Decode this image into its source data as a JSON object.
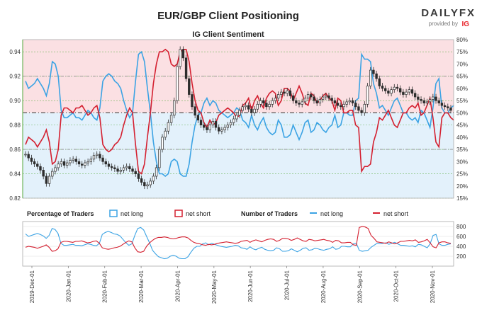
{
  "header": {
    "title": "EUR/GBP Client Positioning",
    "brand_main": "DAILYFX",
    "brand_sub": "provided by",
    "brand_ig": "IG"
  },
  "colors": {
    "long": "#3ba3e4",
    "short": "#d42030",
    "long_bg": "#e3f1fb",
    "short_bg": "#fbe0e3",
    "candle": "#2d2d2d",
    "grid_green": "#6fb55a",
    "grid_gray": "#8c8c8c"
  },
  "chart_data": [
    {
      "type": "candlestick+line",
      "title": "IG Client Sentiment",
      "y_left": {
        "ticks": [
          "0.82",
          "0.84",
          "0.86",
          "0.88",
          "0.90",
          "0.92",
          "0.94"
        ],
        "ylim": [
          0.82,
          0.95
        ]
      },
      "y_right": {
        "ticks": [
          "15%",
          "20%",
          "25%",
          "30%",
          "35%",
          "40%",
          "45%",
          "50%",
          "55%",
          "60%",
          "65%",
          "70%",
          "75%",
          "80%"
        ],
        "ylim": [
          15,
          80
        ]
      },
      "price_close": [
        0.856,
        0.853,
        0.85,
        0.848,
        0.846,
        0.843,
        0.838,
        0.832,
        0.838,
        0.842,
        0.845,
        0.848,
        0.85,
        0.847,
        0.849,
        0.851,
        0.852,
        0.85,
        0.848,
        0.847,
        0.849,
        0.85,
        0.852,
        0.855,
        0.856,
        0.853,
        0.85,
        0.848,
        0.846,
        0.845,
        0.844,
        0.842,
        0.843,
        0.845,
        0.846,
        0.844,
        0.842,
        0.84,
        0.836,
        0.833,
        0.83,
        0.831,
        0.834,
        0.838,
        0.845,
        0.86,
        0.87,
        0.875,
        0.882,
        0.888,
        0.9,
        0.928,
        0.942,
        0.935,
        0.918,
        0.905,
        0.895,
        0.888,
        0.884,
        0.88,
        0.878,
        0.876,
        0.88,
        0.883,
        0.878,
        0.875,
        0.876,
        0.878,
        0.88,
        0.882,
        0.885,
        0.888,
        0.892,
        0.895,
        0.896,
        0.893,
        0.89,
        0.893,
        0.897,
        0.9,
        0.898,
        0.895,
        0.897,
        0.9,
        0.902,
        0.905,
        0.907,
        0.906,
        0.908,
        0.904,
        0.9,
        0.898,
        0.897,
        0.899,
        0.902,
        0.905,
        0.903,
        0.9,
        0.898,
        0.901,
        0.903,
        0.904,
        0.902,
        0.9,
        0.898,
        0.896,
        0.895,
        0.897,
        0.899,
        0.9,
        0.898,
        0.895,
        0.892,
        0.89,
        0.897,
        0.912,
        0.925,
        0.922,
        0.918,
        0.912,
        0.91,
        0.908,
        0.906,
        0.909,
        0.911,
        0.91,
        0.907,
        0.905,
        0.907,
        0.909,
        0.906,
        0.903,
        0.901,
        0.9,
        0.898,
        0.899,
        0.901,
        0.903,
        0.9,
        0.898,
        0.896,
        0.895,
        0.894,
        0.892
      ],
      "pct_net_long": [
        63,
        60,
        61,
        62,
        64,
        62,
        60,
        57,
        62,
        71,
        70,
        65,
        51,
        48,
        48,
        49,
        50,
        48,
        48,
        47,
        49,
        51,
        50,
        48,
        47,
        52,
        63,
        65,
        66,
        65,
        63,
        62,
        60,
        55,
        51,
        48,
        50,
        63,
        74,
        75,
        71,
        60,
        50,
        38,
        30,
        25,
        25,
        24,
        25,
        30,
        31,
        30,
        25,
        24,
        24,
        29,
        38,
        45,
        49,
        50,
        54,
        56,
        53,
        55,
        54,
        51,
        50,
        49,
        48,
        49,
        50,
        52,
        51,
        47,
        46,
        44,
        49,
        45,
        43,
        46,
        48,
        44,
        42,
        41,
        42,
        47,
        45,
        40,
        40,
        41,
        45,
        42,
        39,
        42,
        46,
        47,
        42,
        43,
        46,
        45,
        43,
        42,
        44,
        45,
        49,
        44,
        45,
        50,
        50,
        49,
        49,
        55,
        56,
        74,
        72,
        72,
        71,
        62,
        58,
        52,
        53,
        51,
        49,
        52,
        55,
        56,
        53,
        50,
        50,
        48,
        47,
        48,
        46,
        51,
        50,
        47,
        44,
        52,
        62,
        64,
        52,
        50,
        50,
        52,
        53
      ],
      "pct_net_short": [
        37,
        40,
        39,
        38,
        36,
        38,
        40,
        43,
        38,
        29,
        30,
        35,
        49,
        52,
        52,
        51,
        50,
        52,
        52,
        53,
        51,
        49,
        50,
        52,
        53,
        48,
        37,
        35,
        34,
        35,
        37,
        38,
        40,
        45,
        49,
        52,
        50,
        37,
        26,
        25,
        29,
        40,
        50,
        62,
        70,
        75,
        75,
        76,
        75,
        70,
        69,
        70,
        75,
        76,
        76,
        71,
        62,
        55,
        51,
        50,
        46,
        44,
        47,
        45,
        46,
        49,
        50,
        51,
        52,
        51,
        50,
        48,
        49,
        53,
        54,
        56,
        51,
        55,
        57,
        54,
        52,
        56,
        58,
        59,
        58,
        53,
        55,
        60,
        60,
        59,
        55,
        58,
        61,
        58,
        54,
        53,
        58,
        57,
        54,
        55,
        57,
        58,
        56,
        55,
        51,
        56,
        55,
        50,
        50,
        51,
        51,
        45,
        44,
        26,
        28,
        28,
        29,
        38,
        42,
        48,
        47,
        49,
        51,
        48,
        45,
        44,
        47,
        50,
        50,
        52,
        53,
        52,
        54,
        49,
        50,
        53,
        56,
        48,
        38,
        36,
        48,
        50,
        50,
        48,
        47
      ]
    },
    {
      "type": "line",
      "legend_left_title": "Percentage of Traders",
      "legend_right_title": "Number of Traders",
      "legend": [
        "net long",
        "net short",
        "net long",
        "net short"
      ],
      "y_ticks": [
        "200",
        "400",
        "600",
        "800"
      ],
      "ylim": [
        0,
        900
      ],
      "x_ticks": [
        "2019-Dec-01",
        "2020-Jan-01",
        "2020-Feb-01",
        "2020-Mar-01",
        "2020-Apr-01",
        "2020-May-01",
        "2020-Jun-01",
        "2020-Jul-01",
        "2020-Aug-01",
        "2020-Sep-01",
        "2020-Oct-01",
        "2020-Nov-01"
      ],
      "series": [
        {
          "name": "net long",
          "values": [
            650,
            600,
            620,
            640,
            660,
            640,
            610,
            560,
            620,
            760,
            740,
            660,
            460,
            420,
            420,
            430,
            440,
            420,
            420,
            410,
            430,
            450,
            440,
            420,
            410,
            460,
            640,
            680,
            700,
            680,
            650,
            640,
            610,
            540,
            470,
            420,
            450,
            620,
            760,
            780,
            730,
            600,
            470,
            320,
            250,
            190,
            170,
            150,
            160,
            200,
            220,
            200,
            160,
            150,
            150,
            190,
            280,
            360,
            400,
            400,
            450,
            470,
            430,
            460,
            440,
            420,
            400,
            390,
            380,
            390,
            400,
            420,
            410,
            370,
            360,
            340,
            390,
            350,
            330,
            360,
            380,
            340,
            320,
            310,
            320,
            370,
            350,
            300,
            300,
            310,
            350,
            320,
            290,
            320,
            360,
            370,
            320,
            330,
            360,
            350,
            330,
            320,
            340,
            350,
            390,
            340,
            350,
            400,
            400,
            390,
            390,
            450,
            460,
            320,
            300,
            310,
            320,
            380,
            420,
            460,
            450,
            460,
            470,
            440,
            460,
            480,
            450,
            420,
            420,
            410,
            400,
            410,
            390,
            440,
            430,
            400,
            370,
            450,
            620,
            640,
            450,
            420,
            420,
            440,
            450
          ]
        },
        {
          "name": "net short",
          "values": [
            380,
            400,
            390,
            380,
            360,
            380,
            400,
            430,
            380,
            300,
            310,
            350,
            480,
            500,
            500,
            490,
            480,
            500,
            500,
            510,
            490,
            470,
            480,
            500,
            510,
            460,
            370,
            350,
            340,
            350,
            370,
            380,
            400,
            440,
            480,
            510,
            490,
            370,
            290,
            280,
            300,
            400,
            470,
            520,
            560,
            580,
            580,
            590,
            580,
            560,
            550,
            560,
            580,
            590,
            590,
            570,
            520,
            480,
            460,
            450,
            430,
            420,
            440,
            430,
            440,
            460,
            470,
            480,
            490,
            480,
            470,
            460,
            470,
            500,
            510,
            520,
            480,
            510,
            530,
            510,
            490,
            520,
            540,
            550,
            540,
            500,
            520,
            560,
            560,
            550,
            520,
            540,
            570,
            540,
            510,
            500,
            540,
            530,
            510,
            520,
            530,
            540,
            520,
            510,
            480,
            520,
            510,
            470,
            470,
            480,
            480,
            430,
            420,
            780,
            800,
            790,
            760,
            620,
            560,
            490,
            480,
            470,
            460,
            490,
            470,
            450,
            470,
            500,
            500,
            510,
            520,
            510,
            530,
            480,
            490,
            510,
            540,
            470,
            390,
            370,
            470,
            490,
            490,
            470,
            460
          ]
        }
      ]
    }
  ]
}
